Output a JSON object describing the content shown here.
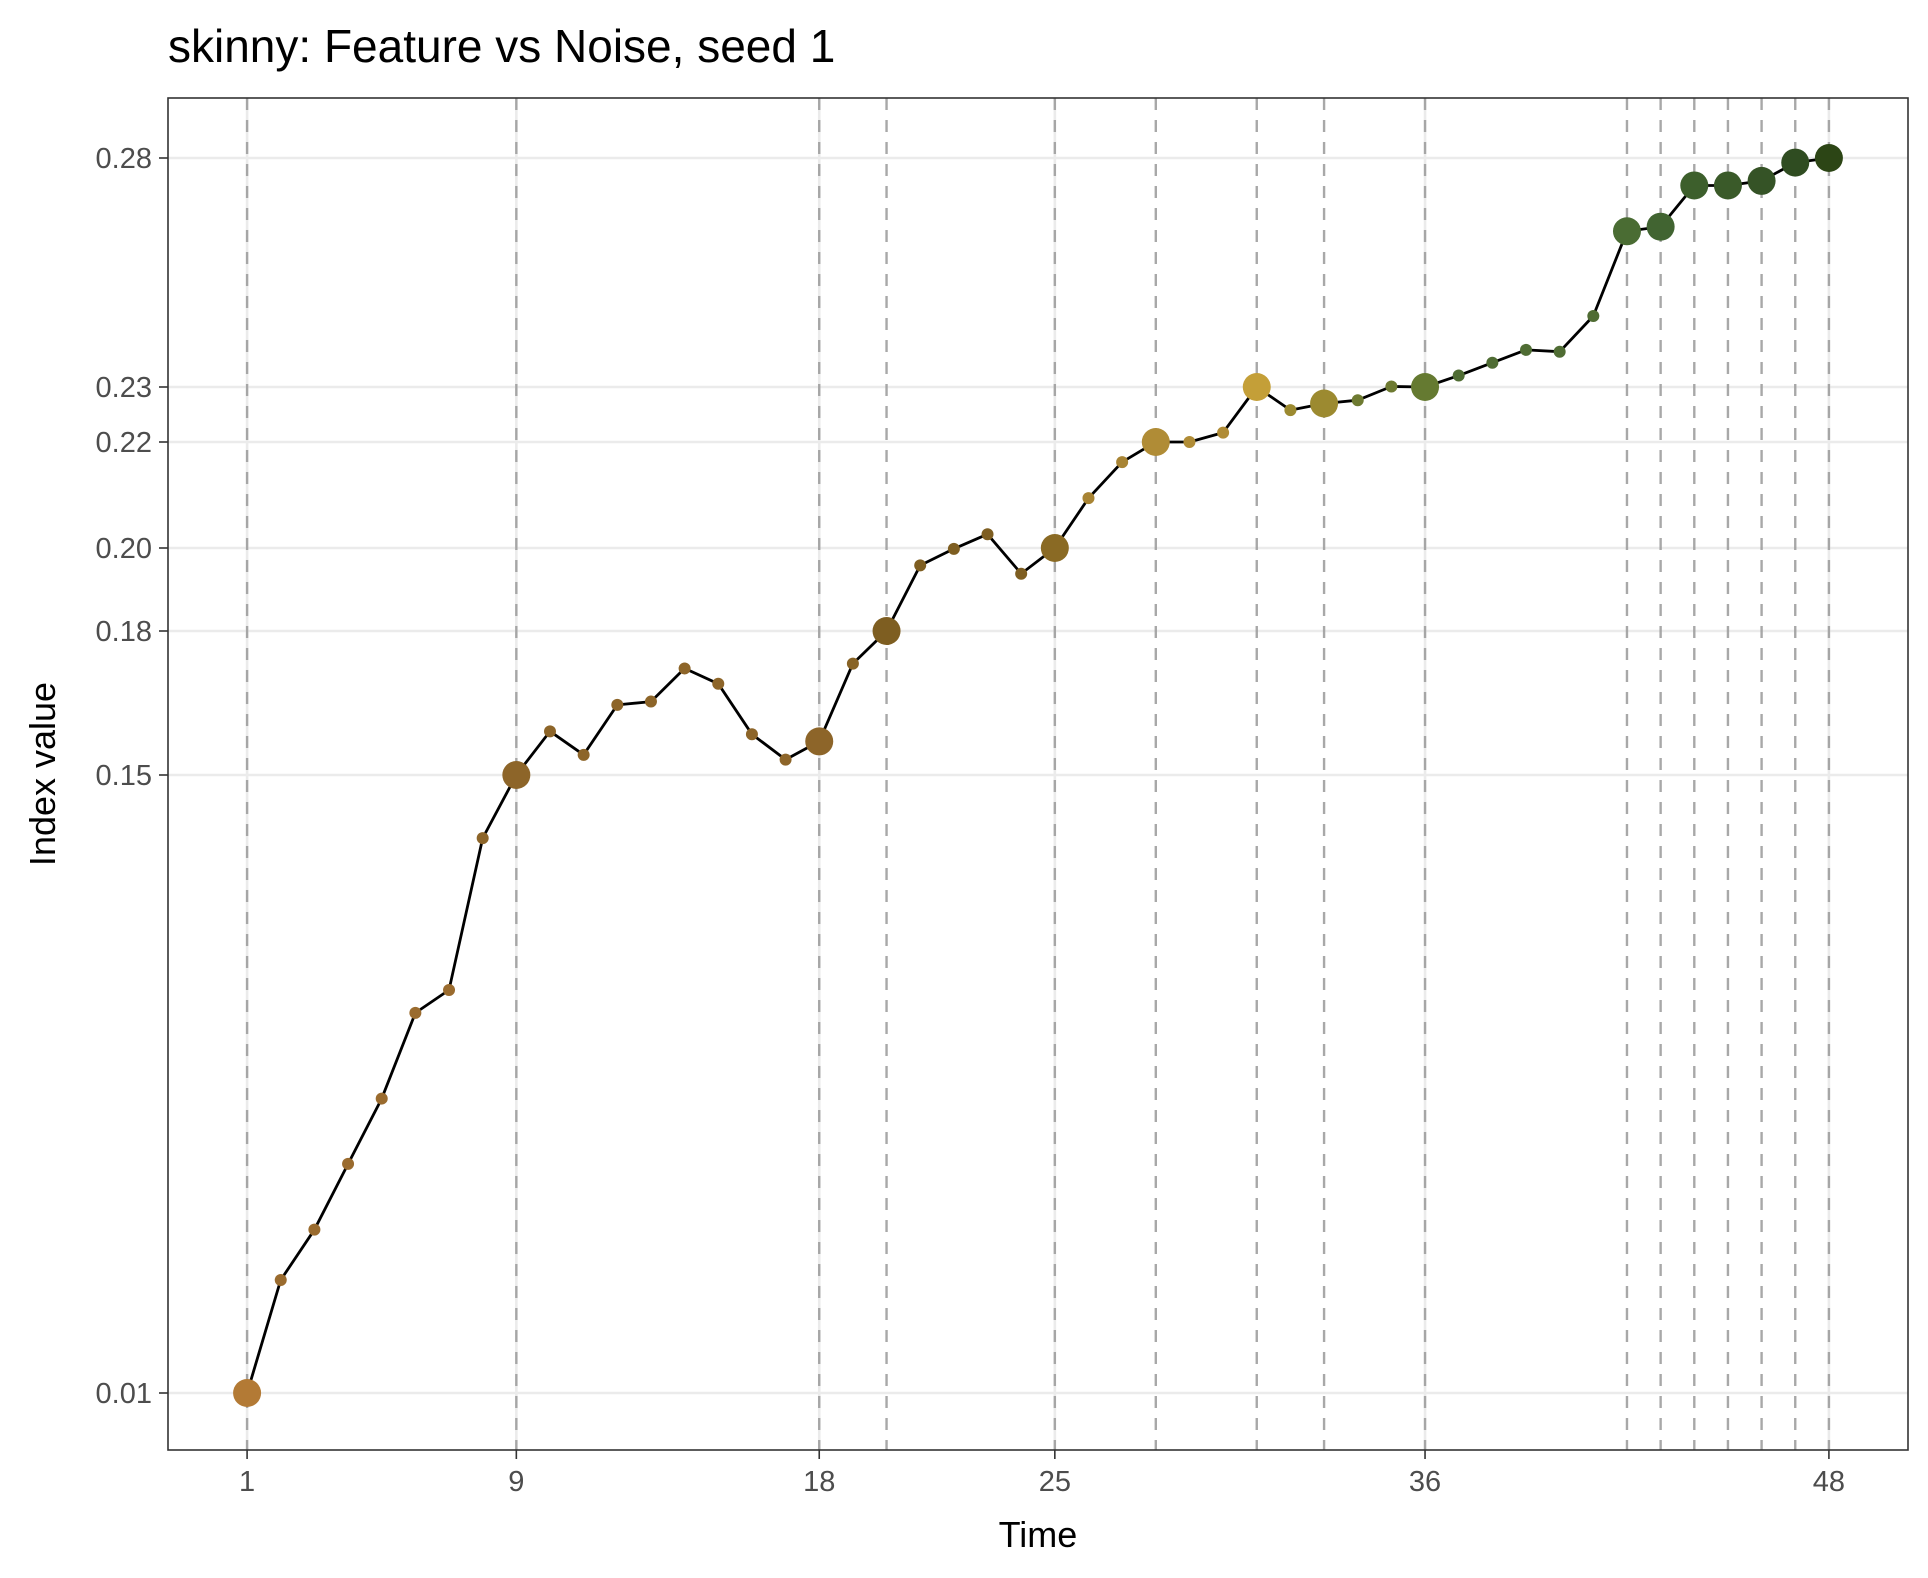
{
  "chart_data": {
    "type": "line",
    "title": "skinny: Feature vs Noise, seed 1",
    "xlabel": "Time",
    "ylabel": "Index value",
    "xlim": [
      -1.35,
      50.35
    ],
    "x_ticks": [
      1,
      9,
      18,
      25,
      36,
      48
    ],
    "y_ticks": [
      0.01,
      0.15,
      0.18,
      0.2,
      0.22,
      0.23,
      0.28
    ],
    "y_tick_labels": [
      "0.01",
      "0.15",
      "0.18",
      "0.20",
      "0.22",
      "0.23",
      "0.28"
    ],
    "y_axis_note": "nonlinear (breakpoint-spaced) scale",
    "y_scale_pairs": [
      [
        0.01,
        0.01
      ],
      [
        0.15,
        0.15
      ],
      [
        0.18,
        0.18
      ],
      [
        0.2,
        0.2
      ],
      [
        0.22,
        0.22
      ],
      [
        0.23,
        0.23
      ],
      [
        0.28,
        0.28
      ]
    ],
    "vlines": [
      1,
      9,
      18,
      20,
      25,
      28,
      31,
      33,
      36,
      42,
      43,
      44,
      45,
      46,
      47,
      48
    ],
    "line_color": "#000000",
    "grid": true,
    "series": [
      {
        "x": [
          1,
          2,
          3,
          4,
          5,
          6,
          7,
          8,
          9,
          10,
          11,
          12,
          13,
          14,
          15,
          16,
          17,
          18,
          19,
          20,
          21,
          22,
          23,
          24,
          25,
          26,
          27,
          28,
          29,
          30,
          31,
          32,
          33,
          34,
          35,
          36,
          37,
          38,
          39,
          40,
          41,
          42,
          43,
          44,
          45,
          46,
          47,
          48
        ],
        "y": [
          0.01,
          0.0356,
          0.047,
          0.0619,
          0.0767,
          0.0961,
          0.1013,
          0.1357,
          0.15,
          0.1591,
          0.1542,
          0.1646,
          0.1653,
          0.1722,
          0.169,
          0.1585,
          0.1532,
          0.157,
          0.1732,
          0.18,
          0.1958,
          0.1998,
          0.2026,
          0.1938,
          0.2,
          0.2094,
          0.2162,
          0.22,
          0.22,
          0.2217,
          0.23,
          0.2258,
          0.227,
          0.2276,
          0.2301,
          0.23,
          0.2325,
          0.2353,
          0.2381,
          0.2377,
          0.2455,
          0.264,
          0.265,
          0.274,
          0.274,
          0.275,
          0.279,
          0.28
        ],
        "highlight": [
          true,
          false,
          false,
          false,
          false,
          false,
          false,
          false,
          true,
          false,
          false,
          false,
          false,
          false,
          false,
          false,
          false,
          true,
          false,
          true,
          false,
          false,
          false,
          false,
          true,
          false,
          false,
          true,
          false,
          false,
          true,
          false,
          true,
          false,
          false,
          true,
          false,
          false,
          false,
          false,
          false,
          true,
          true,
          true,
          true,
          true,
          true,
          true
        ],
        "colors": [
          "#b37a35",
          "#9a6b2e",
          "#9a6b2e",
          "#9a6b2e",
          "#9a6b2e",
          "#9a6b2e",
          "#9a6b2e",
          "#8d6529",
          "#8d6529",
          "#8d6529",
          "#8d6529",
          "#8d6529",
          "#8d6529",
          "#8d6529",
          "#8d6529",
          "#8d6529",
          "#8d6529",
          "#8d6529",
          "#886325",
          "#7e5e21",
          "#7e5e21",
          "#7e5e21",
          "#7e5e21",
          "#7e5e21",
          "#8a6a24",
          "#a88434",
          "#a88434",
          "#b08c36",
          "#b08c36",
          "#b08c36",
          "#c49f38",
          "#9c8a30",
          "#9c8a30",
          "#6e7a31",
          "#6e7a31",
          "#657a31",
          "#4f6c33",
          "#4f6c33",
          "#4f6c33",
          "#4f6c33",
          "#4f6c33",
          "#4a6c33",
          "#416431",
          "#3d5f2c",
          "#3a5a29",
          "#355326",
          "#2f4c21",
          "#2c4515"
        ]
      }
    ]
  }
}
